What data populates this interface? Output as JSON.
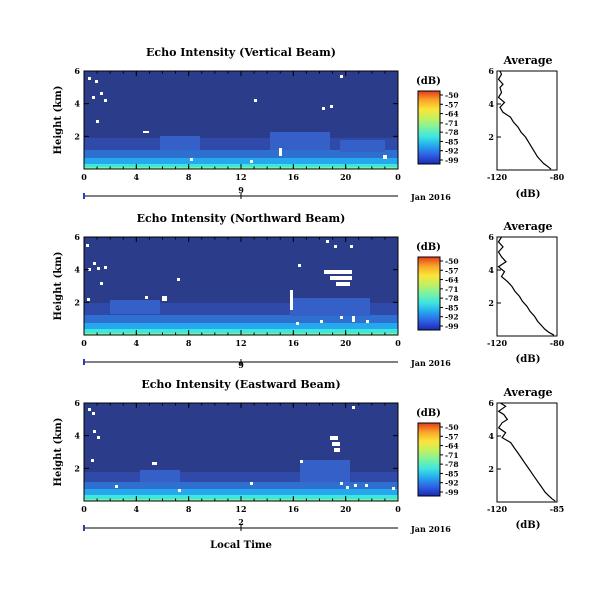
{
  "figure": {
    "colorbar_unit": "(dB)",
    "colorbar_ticks": [
      "-50",
      "-57",
      "-64",
      "-71",
      "-78",
      "-85",
      "-92",
      "-99"
    ],
    "colorbar_range": [
      -99,
      -50
    ],
    "colorbar_colors": [
      "#1a2ab0",
      "#2f60e6",
      "#25a8ee",
      "#3ee6e0",
      "#7cf2a0",
      "#c4f060",
      "#fbe43a",
      "#f8a628",
      "#e63a1c"
    ],
    "heatmap_background": "#2b3c8a",
    "local_time_label": "Local Time"
  },
  "chart_data": [
    {
      "type": "heatmap",
      "title": "Echo Intensity (Vertical Beam)",
      "ylabel": "Height (km)",
      "x_ticks": [
        "0",
        "4",
        "8",
        "12",
        "16",
        "20",
        "0"
      ],
      "y_ticks": [
        "6",
        "4",
        "2"
      ],
      "xlim": [
        0,
        24
      ],
      "ylim": [
        0,
        6
      ],
      "date_label": "Jan 2016",
      "day_label": "9",
      "grid": false,
      "profile": {
        "title": "Average",
        "xlabel": "(dB)",
        "x_ticks": [
          "-120",
          "-80"
        ],
        "y_ticks": [
          "6",
          "4",
          "2"
        ],
        "xlim": [
          -120,
          -80
        ],
        "points": [
          [
            -118,
            6.0
          ],
          [
            -117,
            5.8
          ],
          [
            -119,
            5.5
          ],
          [
            -116,
            5.2
          ],
          [
            -118,
            5.0
          ],
          [
            -117,
            4.7
          ],
          [
            -119,
            4.4
          ],
          [
            -115,
            4.1
          ],
          [
            -118,
            3.8
          ],
          [
            -116,
            3.5
          ],
          [
            -111,
            3.2
          ],
          [
            -109,
            2.9
          ],
          [
            -106,
            2.6
          ],
          [
            -104,
            2.3
          ],
          [
            -101,
            2.0
          ],
          [
            -99,
            1.7
          ],
          [
            -97,
            1.4
          ],
          [
            -95,
            1.1
          ],
          [
            -93,
            0.8
          ],
          [
            -91,
            0.6
          ],
          [
            -89,
            0.4
          ],
          [
            -86,
            0.2
          ],
          [
            -84,
            0.05
          ]
        ]
      }
    },
    {
      "type": "heatmap",
      "title": "Echo Intensity (Northward Beam)",
      "ylabel": "Height (km)",
      "x_ticks": [
        "0",
        "4",
        "8",
        "12",
        "16",
        "20",
        "0"
      ],
      "y_ticks": [
        "6",
        "4",
        "2"
      ],
      "xlim": [
        0,
        24
      ],
      "ylim": [
        0,
        6
      ],
      "date_label": "Jan 2016",
      "day_label": "9",
      "grid": false,
      "profile": {
        "title": "Average",
        "xlabel": "(dB)",
        "x_ticks": [
          "-120",
          "-80"
        ],
        "y_ticks": [
          "6",
          "4",
          "2"
        ],
        "xlim": [
          -120,
          -80
        ],
        "points": [
          [
            -117,
            6.0
          ],
          [
            -119,
            5.7
          ],
          [
            -116,
            5.4
          ],
          [
            -119,
            5.1
          ],
          [
            -117,
            4.8
          ],
          [
            -114,
            4.5
          ],
          [
            -119,
            4.2
          ],
          [
            -115,
            3.9
          ],
          [
            -117,
            3.6
          ],
          [
            -113,
            3.3
          ],
          [
            -110,
            3.0
          ],
          [
            -108,
            2.7
          ],
          [
            -105,
            2.4
          ],
          [
            -103,
            2.1
          ],
          [
            -100,
            1.8
          ],
          [
            -98,
            1.5
          ],
          [
            -95,
            1.2
          ],
          [
            -93,
            0.9
          ],
          [
            -90,
            0.6
          ],
          [
            -88,
            0.4
          ],
          [
            -85,
            0.2
          ],
          [
            -82,
            0.05
          ]
        ]
      }
    },
    {
      "type": "heatmap",
      "title": "Echo Intensity (Eastward Beam)",
      "ylabel": "Height (km)",
      "x_ticks": [
        "0",
        "4",
        "8",
        "12",
        "16",
        "20",
        "0"
      ],
      "y_ticks": [
        "6",
        "4",
        "2"
      ],
      "xlim": [
        0,
        24
      ],
      "ylim": [
        0,
        6
      ],
      "date_label": "Jan 2016",
      "day_label": "2",
      "grid": false,
      "profile": {
        "title": "Average",
        "xlabel": "(dB)",
        "x_ticks": [
          "-120",
          "-85"
        ],
        "y_ticks": [
          "6",
          "4",
          "2"
        ],
        "xlim": [
          -120,
          -85
        ],
        "points": [
          [
            -118,
            6.0
          ],
          [
            -115,
            5.8
          ],
          [
            -119,
            5.5
          ],
          [
            -116,
            5.3
          ],
          [
            -114,
            5.0
          ],
          [
            -117,
            4.8
          ],
          [
            -119,
            4.5
          ],
          [
            -115,
            4.2
          ],
          [
            -117,
            3.9
          ],
          [
            -112,
            3.6
          ],
          [
            -110,
            3.3
          ],
          [
            -108,
            3.0
          ],
          [
            -106,
            2.7
          ],
          [
            -104,
            2.4
          ],
          [
            -102,
            2.1
          ],
          [
            -100,
            1.8
          ],
          [
            -98,
            1.5
          ],
          [
            -96,
            1.2
          ],
          [
            -94,
            0.9
          ],
          [
            -92,
            0.6
          ],
          [
            -90,
            0.4
          ],
          [
            -88,
            0.2
          ],
          [
            -86,
            0.05
          ]
        ]
      }
    }
  ]
}
